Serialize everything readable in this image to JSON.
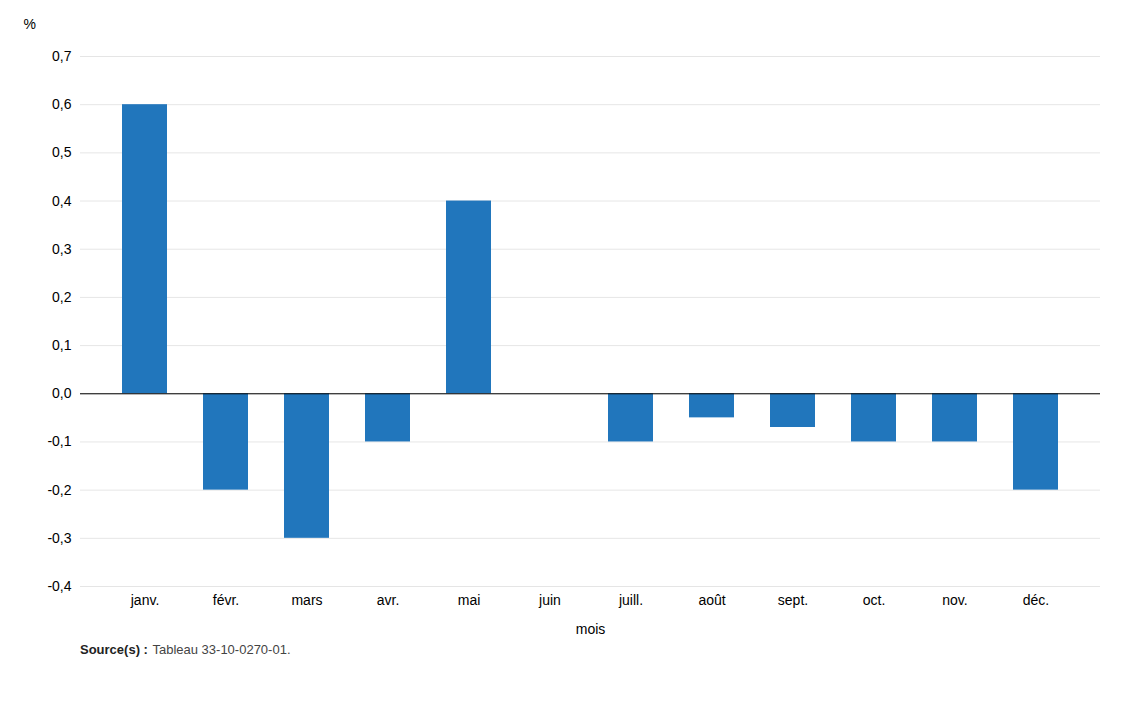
{
  "chart_data": {
    "type": "bar",
    "categories": [
      "janv.",
      "févr.",
      "mars",
      "avr.",
      "mai",
      "juin",
      "juill.",
      "août",
      "sept.",
      "oct.",
      "nov.",
      "déc."
    ],
    "values": [
      0.6,
      -0.2,
      -0.3,
      -0.1,
      0.4,
      0.0,
      -0.1,
      -0.05,
      -0.07,
      -0.1,
      -0.1,
      -0.2
    ],
    "color": "#2176bc",
    "xlabel": "mois",
    "ylabel": "%",
    "ylim": [
      -0.4,
      0.7
    ],
    "yticks": [
      {
        "value": -0.4,
        "label": "-0,4"
      },
      {
        "value": -0.3,
        "label": "-0,3"
      },
      {
        "value": -0.2,
        "label": "-0,2"
      },
      {
        "value": -0.1,
        "label": "-0,1"
      },
      {
        "value": 0.0,
        "label": "0,0"
      },
      {
        "value": 0.1,
        "label": "0,1"
      },
      {
        "value": 0.2,
        "label": "0,2"
      },
      {
        "value": 0.3,
        "label": "0,3"
      },
      {
        "value": 0.4,
        "label": "0,4"
      },
      {
        "value": 0.5,
        "label": "0,5"
      },
      {
        "value": 0.6,
        "label": "0,6"
      },
      {
        "value": 0.7,
        "label": "0,7"
      }
    ],
    "grid": true,
    "annotations": [
      "Source(s) :",
      "Tableau 33-10-0270-01."
    ]
  }
}
